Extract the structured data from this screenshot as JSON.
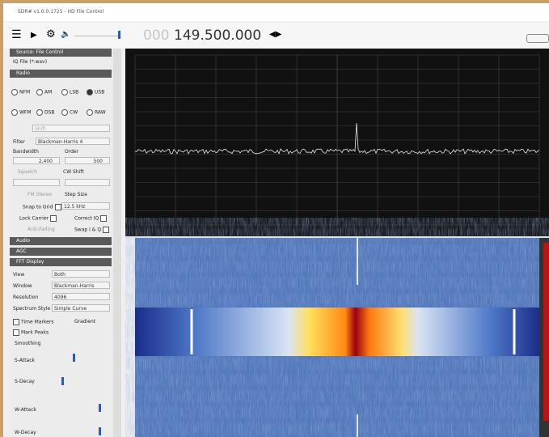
{
  "window": {
    "title": "SDR# v1.0.0.1725 - HD File Control"
  },
  "toolbar": {
    "frequency_prefix": "000",
    "frequency": "149.500.000"
  },
  "sidebar": {
    "source_header": "Source: File Control",
    "source_item": "IQ File (*.wav)",
    "radio_header": "Radio",
    "modes": [
      "NFM",
      "AM",
      "LSB",
      "USB",
      "WFM",
      "DSB",
      "CW",
      "RAW"
    ],
    "shift": "Shift",
    "filter_label": "Filter",
    "filter_value": "Blackman-Harris 4",
    "bandwidth_label": "Bandwidth",
    "order_label": "Order",
    "bandwidth_value": "2,400",
    "order_value": "500",
    "squelch": "Squelch",
    "cw_shift": "CW Shift",
    "fm_stereo": "FM Stereo",
    "step_size": "Step Size",
    "snap": "Snap to Grid",
    "step_value": "12.5 kHz",
    "lock_carrier": "Lock Carrier",
    "correct_iq": "Correct IQ",
    "anti_fading": "Anti-Fading",
    "swap_iq": "Swap I & Q",
    "audio_header": "Audio",
    "agc_header": "AGC",
    "fft_header": "FFT Display",
    "view_label": "View",
    "view_value": "Both",
    "window_label": "Window",
    "window_value": "Blackman-Harris",
    "resolution_label": "Resolution",
    "resolution_value": "4096",
    "style_label": "Spectrum Style",
    "style_value": "Simple Curve",
    "time_markers": "Time Markers",
    "gradient": "Gradient",
    "mark_peaks": "Mark Peaks",
    "smoothing": "Smoothing",
    "s_attack": "S-Attack",
    "s_decay": "S-Decay",
    "w_attack": "W-Attack",
    "w_decay": "W-Decay"
  }
}
